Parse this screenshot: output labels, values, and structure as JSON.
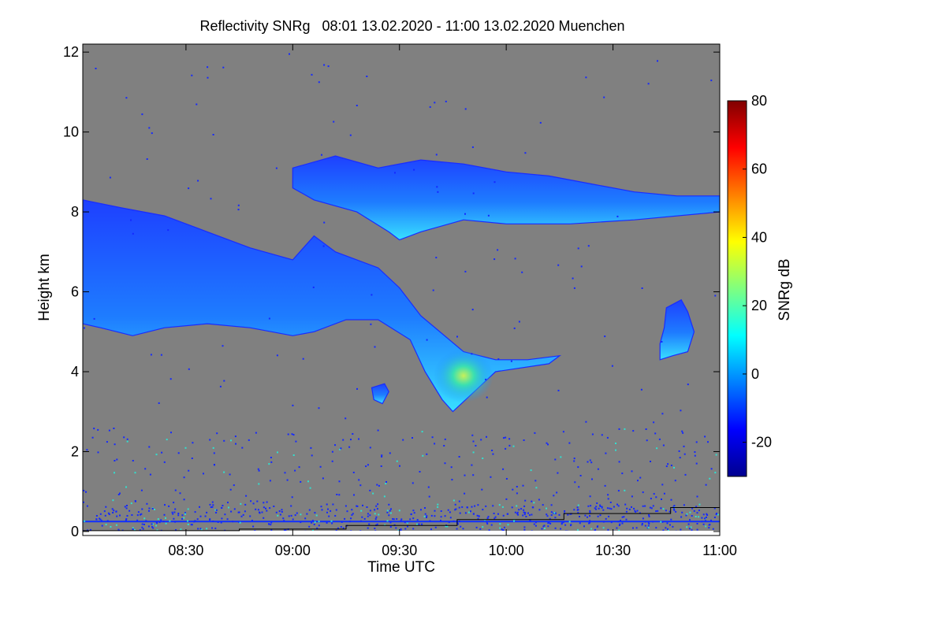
{
  "chart_data": {
    "type": "heatmap",
    "title": "Reflectivity SNRg   08:01 13.02.2020 - 11:00 13.02.2020 Muenchen",
    "xlabel": "Time UTC",
    "ylabel": "Height km",
    "x_range_hours": [
      8.0167,
      11.0
    ],
    "ylim": [
      -0.1,
      12.2
    ],
    "x_ticks": [
      {
        "label": "08:30",
        "hour": 8.5
      },
      {
        "label": "09:00",
        "hour": 9.0
      },
      {
        "label": "09:30",
        "hour": 9.5
      },
      {
        "label": "10:00",
        "hour": 10.0
      },
      {
        "label": "10:30",
        "hour": 10.5
      },
      {
        "label": "11:00",
        "hour": 11.0
      }
    ],
    "y_ticks": [
      0,
      2,
      4,
      6,
      8,
      10,
      12
    ],
    "background_color": "#808080",
    "colorbar": {
      "label": "SNRg dB",
      "range": [
        -30,
        80
      ],
      "ticks": [
        -20,
        0,
        20,
        40,
        60,
        80
      ],
      "colormap": "jet"
    },
    "features": [
      {
        "kind": "cloud",
        "outline": [
          [
            8.017,
            8.3
          ],
          [
            8.2,
            8.1
          ],
          [
            8.4,
            7.9
          ],
          [
            8.6,
            7.5
          ],
          [
            8.8,
            7.1
          ],
          [
            9.0,
            6.8
          ],
          [
            9.1,
            7.4
          ],
          [
            9.2,
            7.0
          ],
          [
            9.4,
            6.6
          ],
          [
            9.5,
            6.1
          ],
          [
            9.6,
            5.4
          ],
          [
            9.8,
            4.5
          ],
          [
            9.95,
            4.3
          ],
          [
            10.1,
            4.3
          ],
          [
            10.25,
            4.4
          ],
          [
            10.2,
            4.2
          ],
          [
            9.95,
            4.0
          ],
          [
            9.85,
            3.5
          ],
          [
            9.75,
            3.0
          ],
          [
            9.7,
            3.3
          ],
          [
            9.62,
            4.0
          ],
          [
            9.55,
            4.8
          ],
          [
            9.4,
            5.3
          ],
          [
            9.25,
            5.3
          ],
          [
            9.1,
            5.0
          ],
          [
            9.0,
            4.9
          ],
          [
            8.8,
            5.1
          ],
          [
            8.6,
            5.2
          ],
          [
            8.4,
            5.1
          ],
          [
            8.25,
            4.9
          ],
          [
            8.1,
            5.1
          ],
          [
            8.017,
            5.2
          ]
        ],
        "max_snr": 25
      },
      {
        "kind": "cloud",
        "outline": [
          [
            9.0,
            9.1
          ],
          [
            9.2,
            9.4
          ],
          [
            9.4,
            9.1
          ],
          [
            9.6,
            9.3
          ],
          [
            9.8,
            9.2
          ],
          [
            10.0,
            9.0
          ],
          [
            10.2,
            8.9
          ],
          [
            10.4,
            8.7
          ],
          [
            10.6,
            8.5
          ],
          [
            10.8,
            8.4
          ],
          [
            11.0,
            8.4
          ],
          [
            11.0,
            8.0
          ],
          [
            10.6,
            7.8
          ],
          [
            10.3,
            7.7
          ],
          [
            10.0,
            7.7
          ],
          [
            9.8,
            7.8
          ],
          [
            9.6,
            7.5
          ],
          [
            9.5,
            7.3
          ],
          [
            9.45,
            7.5
          ],
          [
            9.3,
            8.0
          ],
          [
            9.1,
            8.3
          ],
          [
            9.0,
            8.6
          ]
        ],
        "max_snr": 5
      },
      {
        "kind": "cloud",
        "outline": [
          [
            10.75,
            5.6
          ],
          [
            10.82,
            5.8
          ],
          [
            10.85,
            5.5
          ],
          [
            10.88,
            5.0
          ],
          [
            10.85,
            4.5
          ],
          [
            10.78,
            4.4
          ],
          [
            10.72,
            4.3
          ],
          [
            10.72,
            4.7
          ],
          [
            10.74,
            5.1
          ]
        ],
        "max_snr": 3
      },
      {
        "kind": "cloud",
        "outline": [
          [
            9.37,
            3.6
          ],
          [
            9.43,
            3.7
          ],
          [
            9.45,
            3.5
          ],
          [
            9.42,
            3.2
          ],
          [
            9.38,
            3.3
          ]
        ],
        "max_snr": -5
      }
    ]
  }
}
